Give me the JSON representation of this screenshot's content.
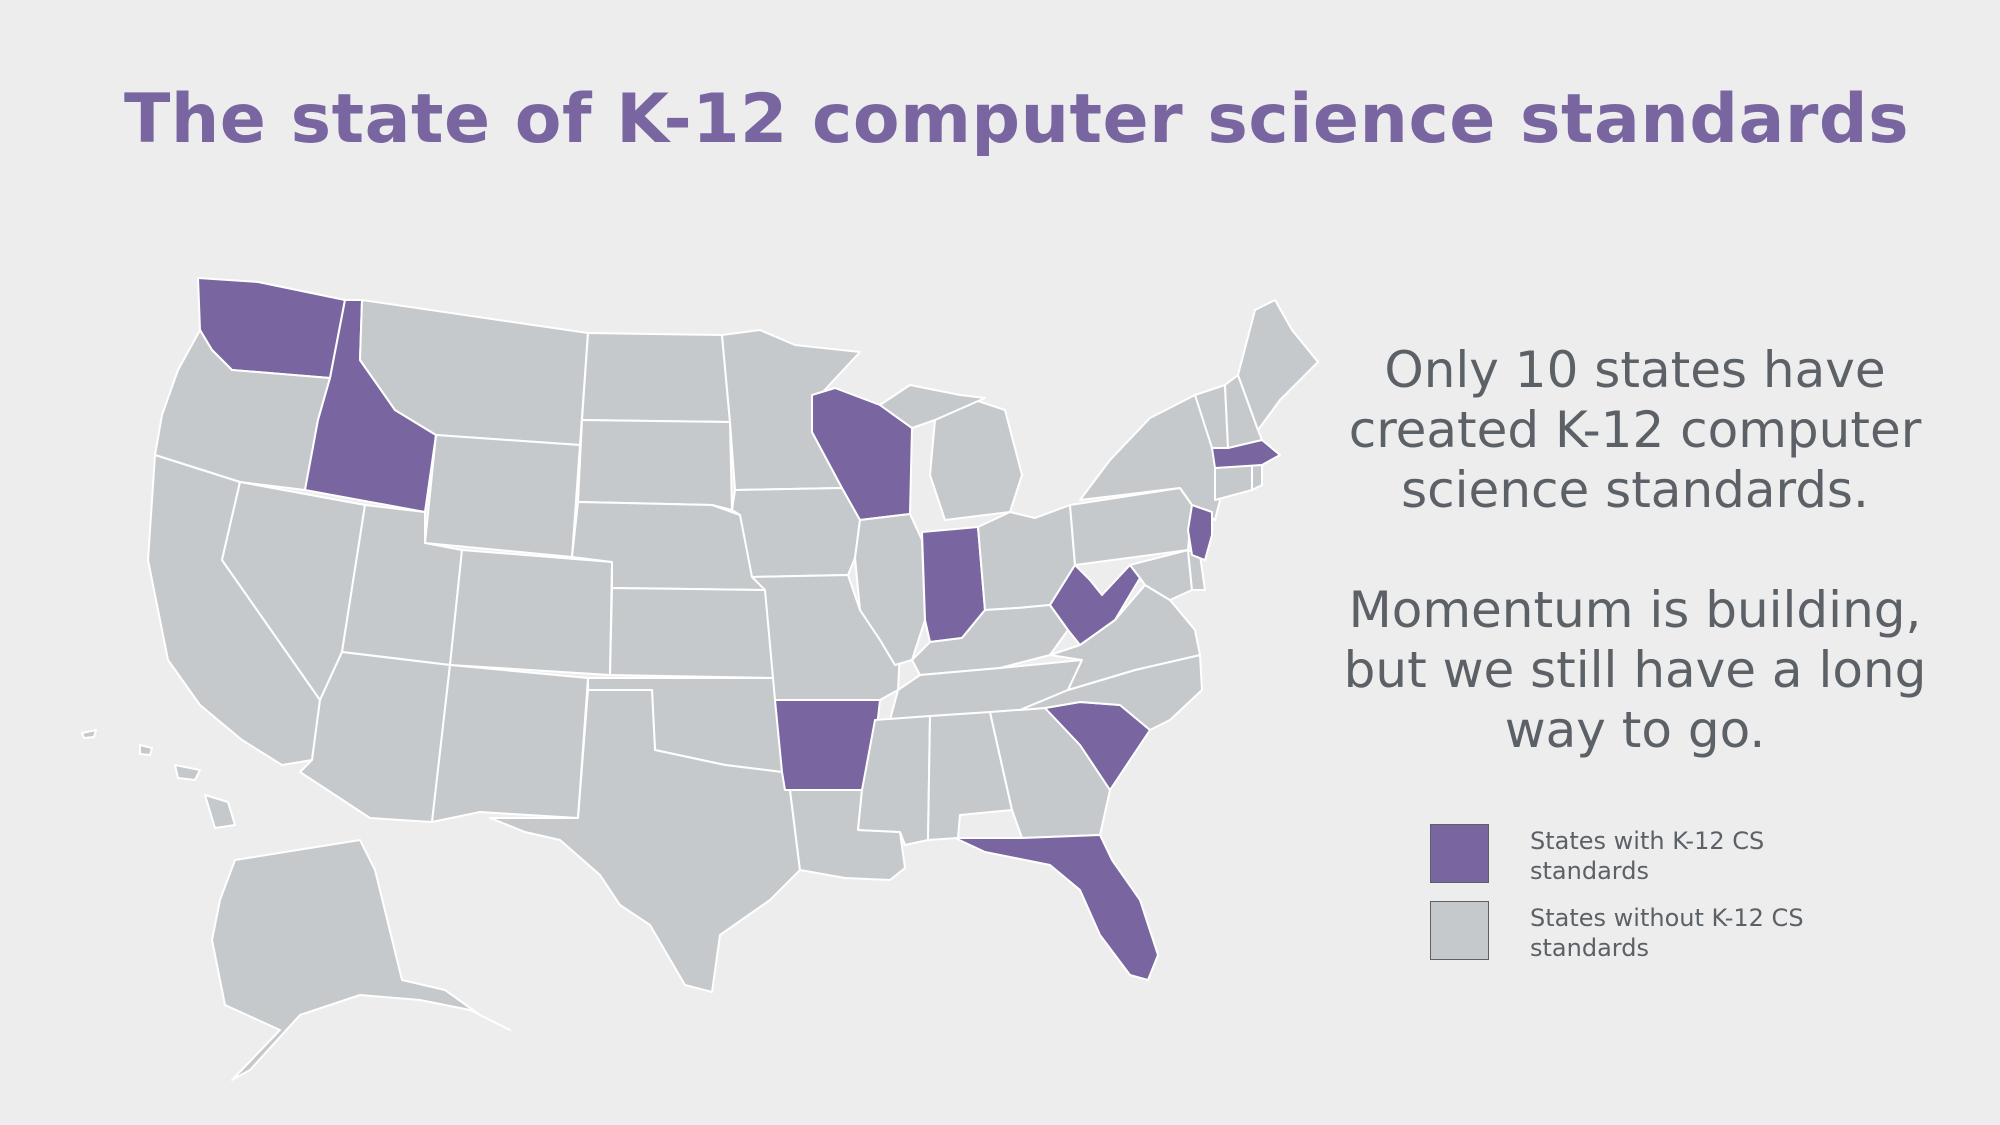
{
  "title": "The state of K-12 computer science standards",
  "message": {
    "line1": "Only 10 states have created K-12 computer science standards.",
    "line2": "Momentum is building, but we still have a long way to go."
  },
  "legend": [
    {
      "label": "States with K-12 CS standards",
      "color": "#7966a1"
    },
    {
      "label": "States without K-12 CS standards",
      "color": "#c6c9cc"
    }
  ],
  "colors": {
    "with_standards": "#7966a1",
    "without_standards": "#c6c9cc",
    "border": "#ffffff",
    "background": "#ededed",
    "title": "#7966a1",
    "text": "#5c6167"
  },
  "states_with_standards": [
    "Washington",
    "Idaho",
    "Wisconsin",
    "Indiana",
    "West Virginia",
    "Arkansas",
    "South Carolina",
    "Florida",
    "New Jersey",
    "Massachusetts"
  ]
}
